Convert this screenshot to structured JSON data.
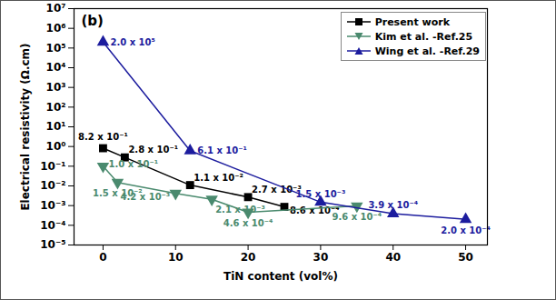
{
  "chart_data": {
    "type": "line",
    "annotation": "(b)",
    "x_label": "TiN content (vol%)",
    "y_label": "Electrical resistivity (Ω.cm)",
    "log": "y",
    "grid": false,
    "legend": "top-right",
    "data_labels": true,
    "xlim": [
      -4,
      53
    ],
    "xticks": [
      0,
      10,
      20,
      30,
      40,
      50
    ],
    "ylim": [
      1e-05,
      10000000
    ],
    "yticks": [
      {
        "value": 1e-05,
        "label": "10⁻⁵"
      },
      {
        "value": 0.0001,
        "label": "10⁻⁴"
      },
      {
        "value": 0.001,
        "label": "10⁻³"
      },
      {
        "value": 0.01,
        "label": "10⁻²"
      },
      {
        "value": 0.1,
        "label": "10⁻¹"
      },
      {
        "value": 1,
        "label": "10⁰"
      },
      {
        "value": 10,
        "label": "10¹"
      },
      {
        "value": 100,
        "label": "10²"
      },
      {
        "value": 1000,
        "label": "10³"
      },
      {
        "value": 10000,
        "label": "10⁴"
      },
      {
        "value": 100000,
        "label": "10⁵"
      },
      {
        "value": 1000000,
        "label": "10⁶"
      },
      {
        "value": 10000000,
        "label": "10⁷"
      }
    ],
    "series": [
      {
        "name": "Present work",
        "color": "#000000",
        "marker": "square",
        "line_style": "solid",
        "x": [
          0,
          3,
          12,
          20,
          25
        ],
        "values": [
          0.82,
          0.28,
          0.011,
          0.0027,
          0.00086
        ],
        "value_labels": [
          "8.2 x 10⁻¹",
          "2.8 x 10⁻¹",
          "1.1 x 10⁻²",
          "2.7 x 10⁻³",
          "8.6 x 10⁻⁴"
        ]
      },
      {
        "name": "Kim et al. -Ref.25",
        "color": "#4a8a6e",
        "marker": "triangle-down",
        "line_style": "solid",
        "x": [
          0,
          2,
          10,
          15,
          20,
          35
        ],
        "values": [
          0.1,
          0.015,
          0.0042,
          0.0021,
          0.00046,
          0.00096
        ],
        "value_labels": [
          "1.0 x 10⁻¹",
          "1.5 x 10⁻²",
          "4.2 x 10⁻³",
          "2.1 x 10⁻³",
          "4.6 x 10⁻⁴",
          "9.6 x 10⁻⁴"
        ]
      },
      {
        "name": "Wing et al. -Ref.29",
        "color": "#1c1c9e",
        "marker": "triangle-up",
        "line_style": "solid",
        "x": [
          0,
          12,
          30,
          40,
          50
        ],
        "values": [
          200000,
          0.61,
          0.0015,
          0.00039,
          0.0002
        ],
        "value_labels": [
          "2.0 x 10⁵",
          "6.1 x 10⁻¹",
          "1.5 x 10⁻³",
          "3.9 x 10⁻⁴",
          "2.0 x 10⁻⁴"
        ]
      }
    ]
  }
}
